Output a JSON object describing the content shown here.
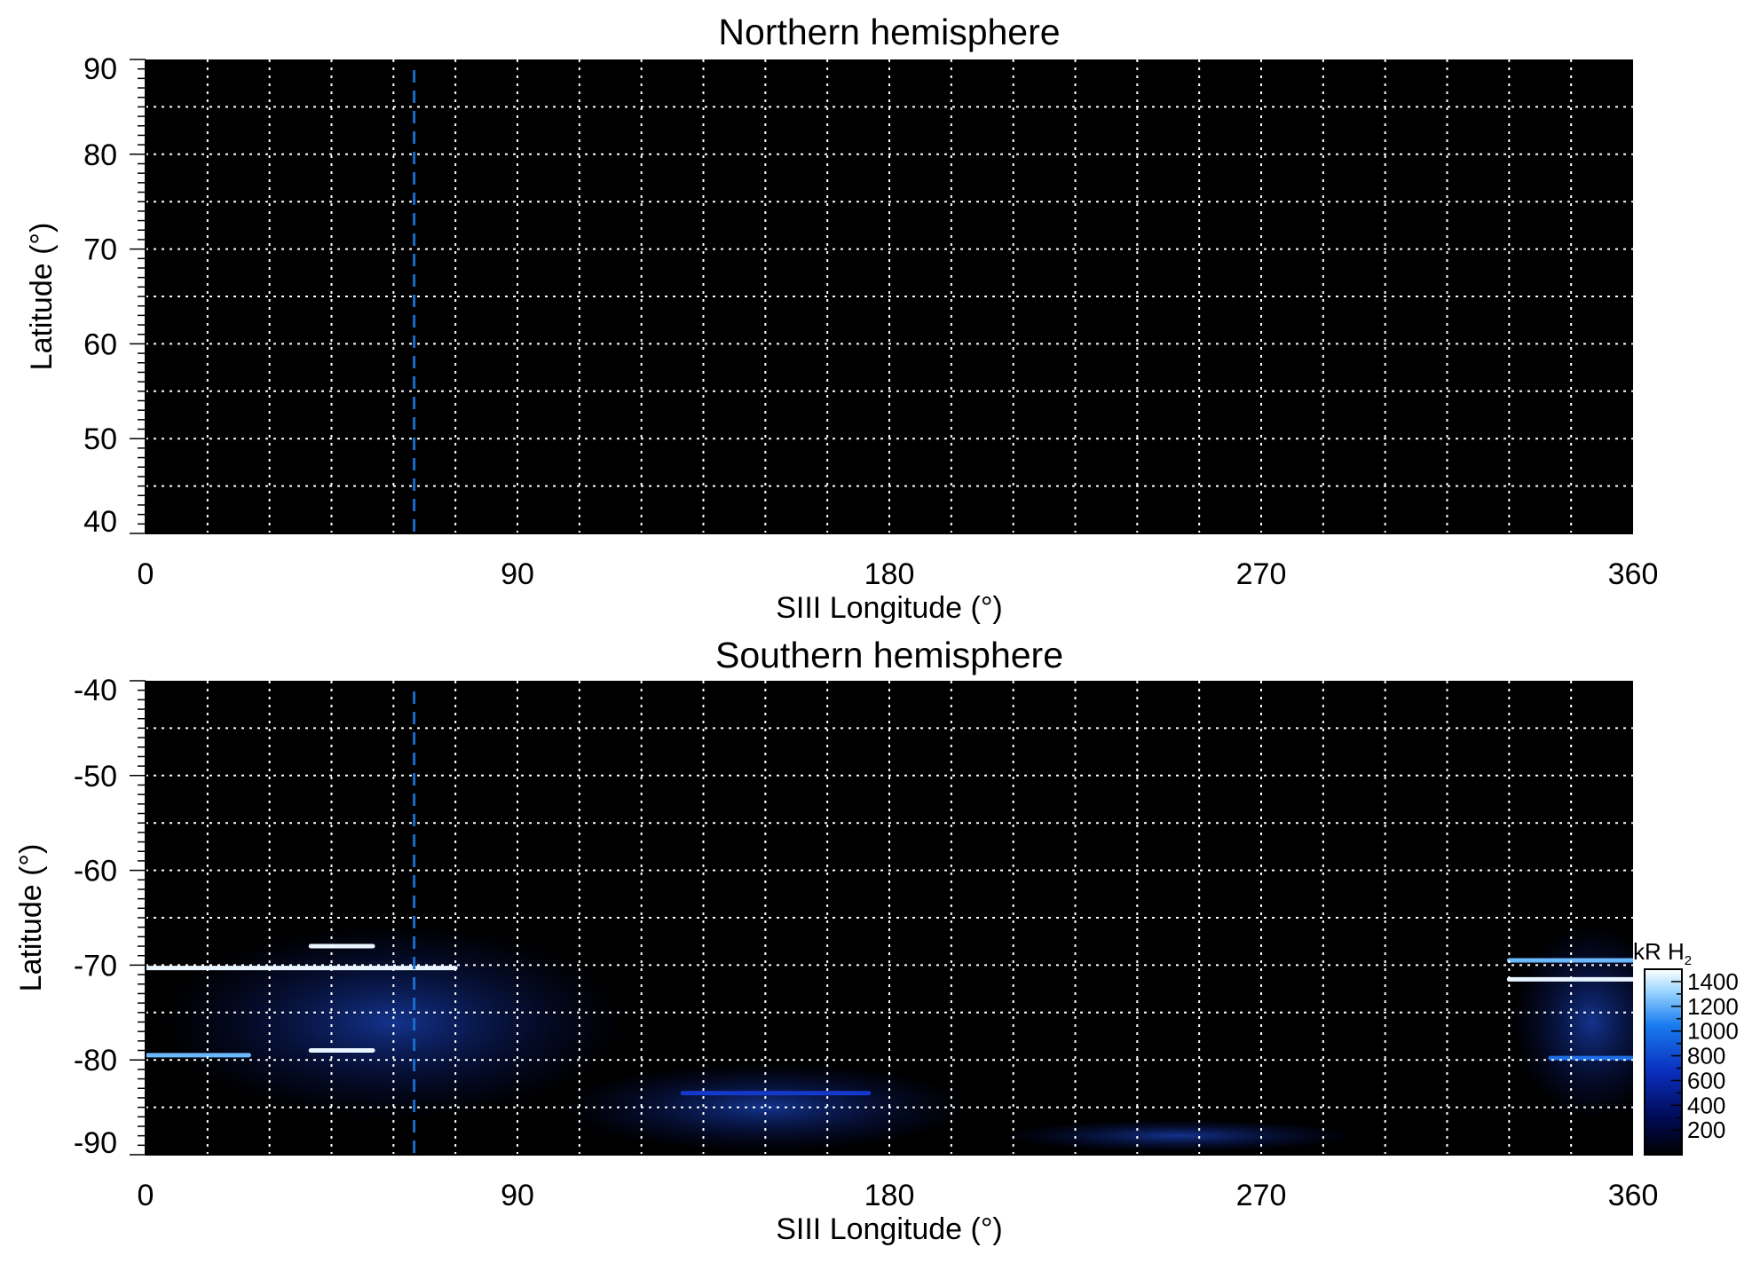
{
  "chart_data": [
    {
      "type": "heatmap",
      "title": "Northern hemisphere",
      "xlabel": "SIII Longitude (°)",
      "ylabel": "Latitude (°)",
      "xlim": [
        0,
        360
      ],
      "ylim": [
        40,
        90
      ],
      "x_ticks": [
        0,
        90,
        180,
        270,
        360
      ],
      "y_ticks": [
        40,
        50,
        60,
        70,
        80,
        90
      ],
      "grid": true,
      "grid_x_step": 15,
      "grid_y_step": 5,
      "reference_line_longitude": 65,
      "reference_line_color": "#1a6ccc",
      "emission": []
    },
    {
      "type": "heatmap",
      "title": "Southern hemisphere",
      "xlabel": "SIII Longitude (°)",
      "ylabel": "Latitude (°)",
      "xlim": [
        0,
        360
      ],
      "ylim": [
        -90,
        -40
      ],
      "x_ticks": [
        0,
        90,
        180,
        270,
        360
      ],
      "y_ticks": [
        -40,
        -50,
        -60,
        -70,
        -80,
        -90
      ],
      "grid": true,
      "grid_x_step": 15,
      "grid_y_step": 5,
      "reference_line_longitude": 65,
      "reference_line_color": "#1a6ccc",
      "emission": [
        {
          "lon": [
            0,
            75
          ],
          "lat": -70.3,
          "intensity": 1300
        },
        {
          "lon": [
            40,
            55
          ],
          "lat": -68.0,
          "intensity": 1400
        },
        {
          "lon": [
            0,
            25
          ],
          "lat": -79.5,
          "intensity": 1200
        },
        {
          "lon": [
            40,
            55
          ],
          "lat": -79.0,
          "intensity": 1300
        },
        {
          "lon": [
            130,
            175
          ],
          "lat": -83.5,
          "intensity": 700
        },
        {
          "lon": [
            330,
            360
          ],
          "lat": -71.5,
          "intensity": 1400
        },
        {
          "lon": [
            330,
            360
          ],
          "lat": -69.5,
          "intensity": 1100
        },
        {
          "lon": [
            340,
            360
          ],
          "lat": -79.8,
          "intensity": 900
        }
      ]
    }
  ],
  "colorbar": {
    "label": "kR H",
    "label_sub": "2",
    "ticks": [
      200,
      400,
      600,
      800,
      1000,
      1200,
      1400
    ],
    "range": [
      0,
      1500
    ],
    "colors": [
      "#000000",
      "#000b55",
      "#0a2fbf",
      "#1a7cf0",
      "#9ad5ff",
      "#ffffff"
    ]
  }
}
